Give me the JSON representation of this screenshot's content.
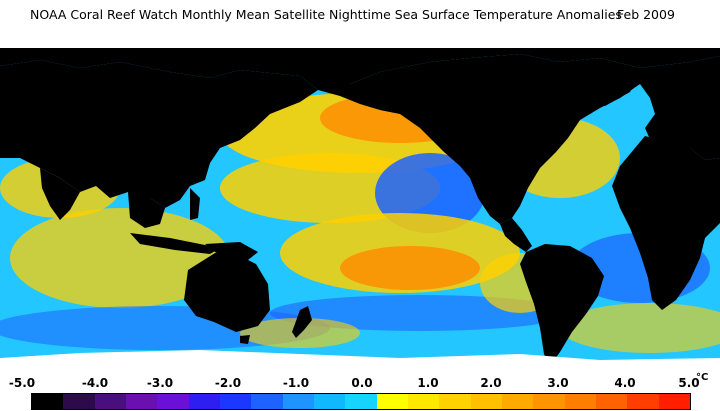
{
  "title": "NOAA Coral Reef Watch Monthly Mean Satellite Nighttime Sea Surface Temperature Anomalies",
  "date": "Feb 2009",
  "legend": {
    "ticks": [
      "-5.0",
      "-4.0",
      "-3.0",
      "-2.0",
      "-1.0",
      "0.0",
      "1.0",
      "2.0",
      "3.0",
      "4.0",
      "5.0"
    ],
    "unit": "°C",
    "colors": [
      "#000000",
      "#2d0a4a",
      "#4b0f7d",
      "#6a0fb0",
      "#6b10d8",
      "#2f1ef0",
      "#1a38ff",
      "#1e63ff",
      "#1e94ff",
      "#10b8ff",
      "#16d4ff",
      "#ffff00",
      "#ffe800",
      "#ffd200",
      "#ffc000",
      "#ffaa00",
      "#ff9400",
      "#ff7e00",
      "#ff6200",
      "#ff3e00",
      "#ff1e00"
    ]
  },
  "map_colors": {
    "land": "#000000",
    "ice": "#ffffff",
    "neutral": "#24c6ff",
    "warm": "#ffd000",
    "hot": "#ff8a00",
    "cool": "#1e63ff",
    "cold": "#2f1ef0"
  }
}
